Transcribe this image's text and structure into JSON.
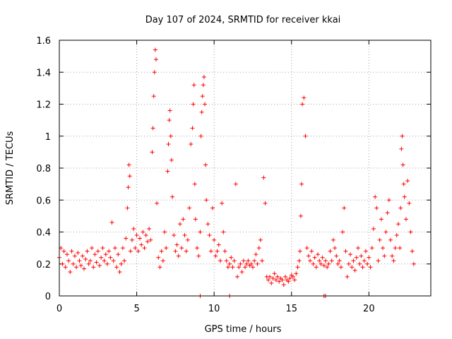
{
  "chart_data": {
    "type": "scatter",
    "title": "Day 107 of 2024, SRMTID for receiver kkai",
    "xlabel": "GPS time / hours",
    "ylabel": "SRMTID / TECUs",
    "xlim": [
      0,
      24
    ],
    "ylim": [
      0,
      1.6
    ],
    "xticks": [
      0,
      5,
      10,
      15,
      20
    ],
    "yticks": [
      0,
      0.2,
      0.4,
      0.6,
      0.8,
      1,
      1.2,
      1.4,
      1.6
    ],
    "xtick_labels": [
      "0",
      "5",
      "10",
      "15",
      "20"
    ],
    "ytick_labels": [
      "0",
      "0.2",
      "0.4",
      "0.6",
      "0.8",
      "1",
      "1.2",
      "1.4",
      "1.6"
    ],
    "grid": true,
    "marker": "+",
    "color": "#ff0000",
    "series": [
      {
        "name": "SRMTID",
        "x": [
          0.0,
          0.1,
          0.2,
          0.3,
          0.4,
          0.5,
          0.6,
          0.7,
          0.8,
          0.9,
          1.0,
          1.1,
          1.2,
          1.3,
          1.4,
          1.5,
          1.6,
          1.7,
          1.8,
          1.9,
          2.0,
          2.1,
          2.2,
          2.3,
          2.4,
          2.5,
          2.6,
          2.7,
          2.8,
          2.9,
          3.0,
          3.1,
          3.2,
          3.3,
          3.4,
          3.5,
          3.6,
          3.7,
          3.8,
          3.9,
          4.0,
          4.1,
          4.2,
          4.3,
          4.4,
          4.45,
          4.5,
          4.55,
          4.6,
          4.7,
          4.8,
          4.9,
          5.0,
          5.1,
          5.2,
          5.3,
          5.4,
          5.5,
          5.6,
          5.7,
          5.8,
          5.9,
          6.0,
          6.05,
          6.1,
          6.15,
          6.2,
          6.25,
          6.3,
          6.4,
          6.5,
          6.6,
          6.7,
          6.8,
          6.9,
          7.0,
          7.05,
          7.1,
          7.15,
          7.2,
          7.25,
          7.3,
          7.4,
          7.5,
          7.6,
          7.7,
          7.8,
          7.9,
          8.0,
          8.1,
          8.2,
          8.3,
          8.4,
          8.5,
          8.6,
          8.65,
          8.7,
          8.75,
          8.8,
          8.9,
          9.0,
          9.1,
          9.15,
          9.2,
          9.25,
          9.3,
          9.35,
          9.4,
          9.45,
          9.5,
          9.6,
          9.7,
          9.8,
          9.9,
          10.0,
          10.1,
          10.2,
          10.3,
          10.4,
          10.5,
          10.6,
          10.7,
          10.8,
          10.9,
          11.0,
          11.1,
          11.2,
          11.3,
          11.4,
          11.5,
          11.6,
          11.7,
          11.8,
          11.9,
          12.0,
          12.1,
          12.2,
          12.3,
          12.4,
          12.5,
          12.6,
          12.7,
          12.8,
          12.9,
          13.0,
          13.1,
          13.2,
          13.3,
          13.4,
          13.5,
          13.6,
          13.7,
          13.8,
          13.9,
          14.0,
          14.1,
          14.2,
          14.3,
          14.4,
          14.5,
          14.6,
          14.7,
          14.8,
          14.9,
          15.0,
          15.1,
          15.2,
          15.3,
          15.4,
          15.5,
          15.55,
          15.6,
          15.65,
          15.7,
          15.8,
          15.9,
          16.0,
          16.1,
          16.2,
          16.3,
          16.4,
          16.5,
          16.6,
          16.7,
          16.8,
          16.9,
          17.0,
          17.1,
          17.2,
          17.3,
          17.4,
          17.5,
          17.6,
          17.7,
          17.8,
          17.9,
          18.0,
          18.1,
          18.2,
          18.3,
          18.4,
          18.5,
          18.6,
          18.7,
          18.8,
          18.9,
          19.0,
          19.1,
          19.2,
          19.3,
          19.4,
          19.5,
          19.6,
          19.7,
          19.8,
          19.9,
          20.0,
          20.1,
          20.2,
          20.3,
          20.4,
          20.5,
          20.6,
          20.7,
          20.8,
          20.9,
          21.0,
          21.1,
          21.2,
          21.3,
          21.4,
          21.5,
          21.6,
          21.7,
          21.8,
          21.9,
          22.0,
          22.05,
          22.1,
          22.15,
          22.2,
          22.25,
          22.3,
          22.4,
          22.5,
          22.6,
          22.7,
          22.8,
          22.9
        ],
        "y": [
          0.24,
          0.3,
          0.2,
          0.28,
          0.18,
          0.26,
          0.22,
          0.15,
          0.28,
          0.2,
          0.25,
          0.18,
          0.27,
          0.22,
          0.19,
          0.25,
          0.17,
          0.23,
          0.28,
          0.2,
          0.22,
          0.3,
          0.18,
          0.26,
          0.21,
          0.28,
          0.19,
          0.24,
          0.3,
          0.22,
          0.26,
          0.2,
          0.28,
          0.24,
          0.46,
          0.22,
          0.3,
          0.18,
          0.26,
          0.15,
          0.2,
          0.3,
          0.22,
          0.36,
          0.55,
          0.68,
          0.82,
          0.75,
          0.28,
          0.35,
          0.42,
          0.3,
          0.38,
          0.28,
          0.36,
          0.32,
          0.4,
          0.3,
          0.38,
          0.34,
          0.42,
          0.35,
          0.9,
          1.05,
          1.25,
          1.4,
          1.54,
          1.48,
          0.58,
          0.24,
          0.18,
          0.28,
          0.22,
          0.4,
          0.3,
          0.78,
          0.95,
          1.1,
          1.16,
          1.0,
          0.85,
          0.62,
          0.38,
          0.28,
          0.32,
          0.25,
          0.45,
          0.3,
          0.48,
          0.38,
          0.28,
          0.35,
          0.55,
          0.95,
          1.05,
          1.2,
          1.32,
          0.7,
          0.48,
          0.3,
          0.25,
          0.4,
          1.0,
          1.15,
          1.25,
          1.32,
          1.37,
          1.2,
          0.82,
          0.6,
          0.45,
          0.38,
          0.28,
          0.55,
          0.35,
          0.25,
          0.28,
          0.32,
          0.22,
          0.58,
          0.4,
          0.28,
          0.22,
          0.18,
          0.2,
          0.24,
          0.18,
          0.22,
          0.7,
          0.12,
          0.18,
          0.2,
          0.15,
          0.22,
          0.18,
          0.2,
          0.22,
          0.19,
          0.2,
          0.18,
          0.22,
          0.26,
          0.2,
          0.3,
          0.35,
          0.22,
          0.74,
          0.58,
          0.12,
          0.1,
          0.12,
          0.08,
          0.11,
          0.14,
          0.1,
          0.12,
          0.09,
          0.11,
          0.1,
          0.07,
          0.12,
          0.1,
          0.09,
          0.11,
          0.13,
          0.12,
          0.1,
          0.14,
          0.18,
          0.22,
          0.28,
          0.5,
          0.7,
          1.2,
          1.24,
          1.0,
          0.3,
          0.25,
          0.22,
          0.28,
          0.2,
          0.24,
          0.18,
          0.26,
          0.22,
          0.2,
          0.24,
          0.19,
          0.22,
          0.18,
          0.2,
          0.28,
          0.22,
          0.35,
          0.3,
          0.25,
          0.2,
          0.22,
          0.18,
          0.4,
          0.55,
          0.28,
          0.12,
          0.2,
          0.26,
          0.18,
          0.22,
          0.16,
          0.24,
          0.3,
          0.2,
          0.25,
          0.18,
          0.22,
          0.28,
          0.2,
          0.24,
          0.18,
          0.3,
          0.42,
          0.62,
          0.55,
          0.22,
          0.35,
          0.48,
          0.3,
          0.25,
          0.4,
          0.52,
          0.6,
          0.35,
          0.25,
          0.22,
          0.3,
          0.38,
          0.45,
          0.3,
          0.55,
          0.92,
          1.0,
          0.82,
          0.7,
          0.62,
          0.48,
          0.72,
          0.58,
          0.4,
          0.28,
          0.2
        ]
      }
    ],
    "isolated_zero_points_x": [
      9.1,
      11.0,
      17.1,
      17.2
    ]
  }
}
